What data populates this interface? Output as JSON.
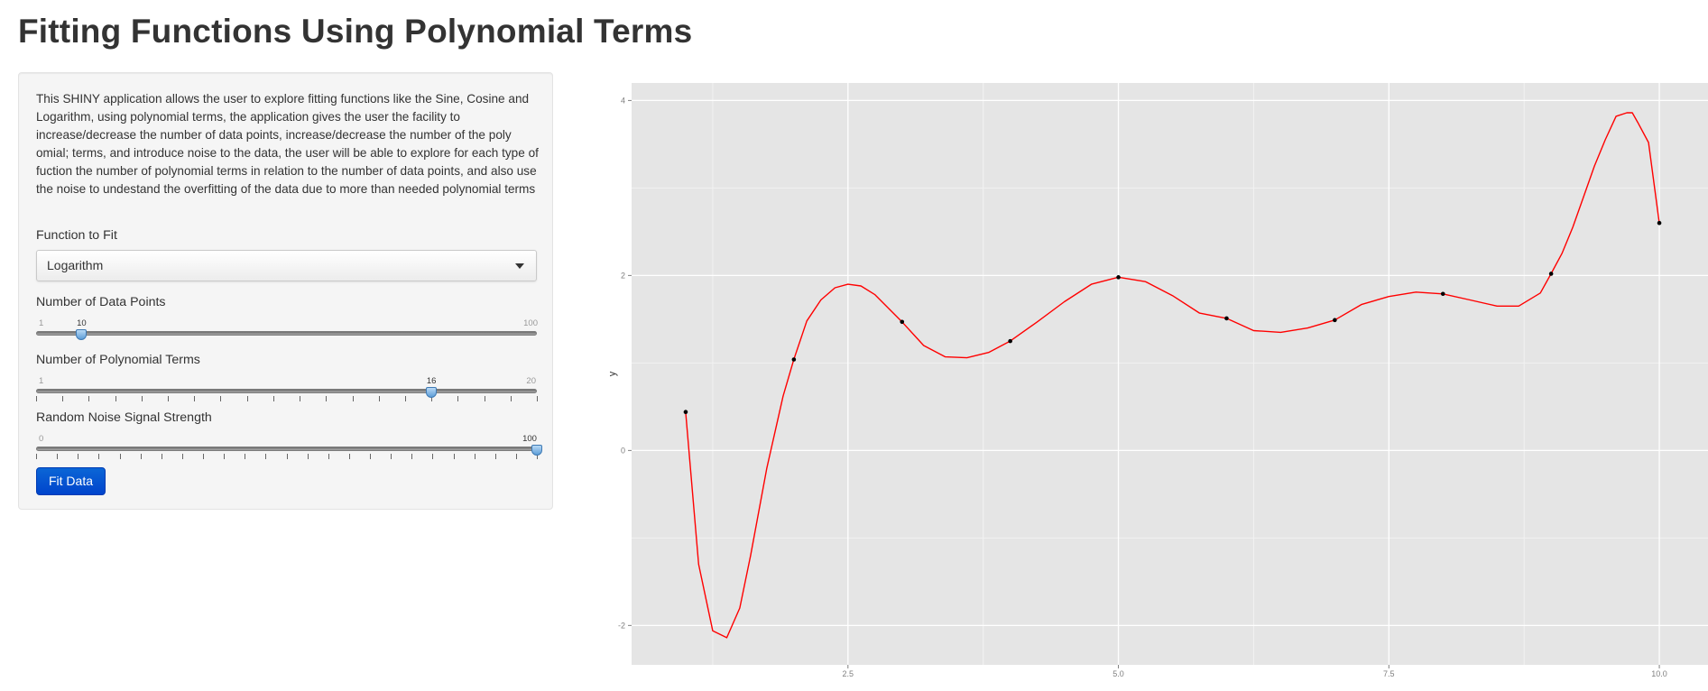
{
  "page": {
    "title": "Fitting Functions Using Polynomial Terms"
  },
  "sidebar": {
    "description": "This SHINY application allows the user to explore fitting functions like the Sine, Cosine and Logarithm, using polynomial terms, the application gives the user the facility to increase/decrease the number of data points, increase/decrease the number of the poly omial; terms, and introduce noise to the data, the user will be able to explore for each type of fuction the number of polynomial terms in relation to the number of data points, and also use the noise to undestand the overfitting of the data due to more than needed polynomial terms",
    "function_select": {
      "label": "Function to Fit",
      "value": "Logarithm"
    },
    "sliders": {
      "data_points": {
        "label": "Number of Data Points",
        "min": "1",
        "max": "100",
        "value": "10",
        "fraction": 0.0909
      },
      "poly_terms": {
        "label": "Number of Polynomial Terms",
        "min": "1",
        "max": "20",
        "value": "16",
        "fraction": 0.7895
      },
      "noise": {
        "label": "Random Noise Signal Strength",
        "min": "0",
        "max": "100",
        "value": "100",
        "fraction": 1.0
      }
    },
    "fit_button_label": "Fit Data"
  },
  "colors": {
    "accent_button": "#0044cc",
    "plot_panel": "#e5e5e5",
    "fit_line": "#ff0000",
    "points": "#000000"
  },
  "chart_data": {
    "type": "scatter",
    "title": "",
    "xlabel": "",
    "ylabel": "y",
    "xlim": [
      0.5,
      10.45
    ],
    "ylim": [
      -2.45,
      4.2
    ],
    "x_ticks": [
      "2.5",
      "5.0",
      "7.5",
      "10.0"
    ],
    "y_ticks": [
      "-2",
      "0",
      "2",
      "4"
    ],
    "grid": true,
    "series": [
      {
        "kind": "points",
        "x": [
          1,
          2,
          3,
          4,
          5,
          6,
          7,
          8,
          9,
          10
        ],
        "y": [
          0.44,
          1.04,
          1.47,
          1.25,
          1.98,
          1.51,
          1.49,
          1.79,
          2.02,
          2.6
        ]
      },
      {
        "kind": "fitted-curve",
        "x": [
          1.0,
          1.12,
          1.25,
          1.38,
          1.5,
          1.6,
          1.75,
          1.9,
          2.0,
          2.12,
          2.25,
          2.38,
          2.5,
          2.62,
          2.75,
          3.0,
          3.2,
          3.4,
          3.6,
          3.8,
          4.0,
          4.25,
          4.5,
          4.75,
          5.0,
          5.25,
          5.5,
          5.75,
          6.0,
          6.25,
          6.5,
          6.75,
          7.0,
          7.25,
          7.5,
          7.75,
          8.0,
          8.25,
          8.5,
          8.7,
          8.9,
          9.0,
          9.1,
          9.2,
          9.3,
          9.4,
          9.5,
          9.6,
          9.7,
          9.75,
          9.8,
          9.9,
          10.0
        ],
        "y": [
          0.44,
          -1.3,
          -2.06,
          -2.14,
          -1.8,
          -1.2,
          -0.2,
          0.62,
          1.04,
          1.48,
          1.72,
          1.86,
          1.9,
          1.88,
          1.78,
          1.47,
          1.2,
          1.07,
          1.06,
          1.12,
          1.25,
          1.47,
          1.7,
          1.9,
          1.98,
          1.93,
          1.77,
          1.57,
          1.51,
          1.37,
          1.35,
          1.4,
          1.49,
          1.67,
          1.76,
          1.81,
          1.79,
          1.72,
          1.65,
          1.65,
          1.8,
          2.02,
          2.25,
          2.55,
          2.9,
          3.25,
          3.55,
          3.82,
          3.86,
          3.86,
          3.75,
          3.52,
          2.6
        ]
      }
    ]
  }
}
